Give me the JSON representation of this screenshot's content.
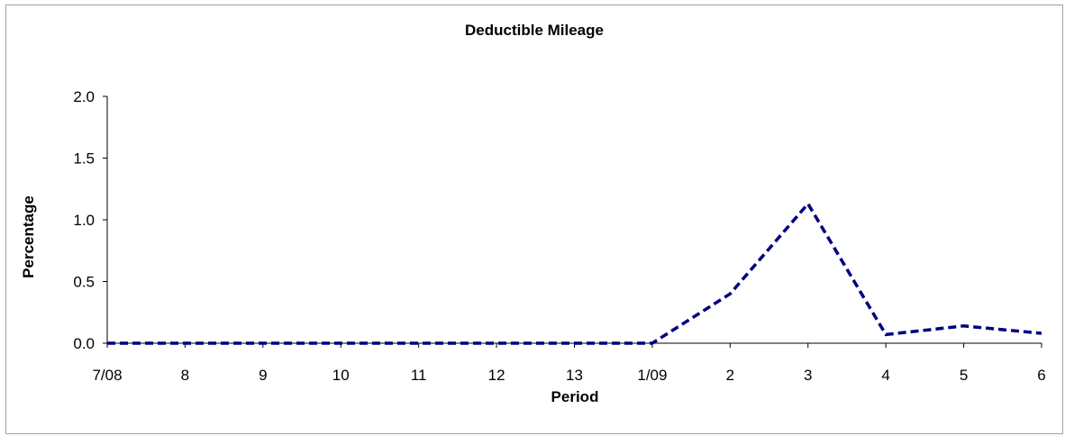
{
  "chart_data": {
    "type": "line",
    "title": "Deductible Mileage",
    "xlabel": "Period",
    "ylabel": "Percentage",
    "categories": [
      "7/08",
      "8",
      "9",
      "10",
      "11",
      "12",
      "13",
      "1/09",
      "2",
      "3",
      "4",
      "5",
      "6"
    ],
    "series": [
      {
        "values": [
          0.0,
          0.0,
          0.0,
          0.0,
          0.0,
          0.0,
          0.0,
          0.0,
          0.4,
          1.13,
          0.07,
          0.14,
          0.08
        ],
        "color": "#000080",
        "line_style": "dashed"
      }
    ],
    "ylim": [
      0,
      2.0
    ],
    "yticks": [
      "0.0",
      "0.5",
      "1.0",
      "1.5",
      "2.0"
    ],
    "grid": false,
    "legend": "none"
  }
}
